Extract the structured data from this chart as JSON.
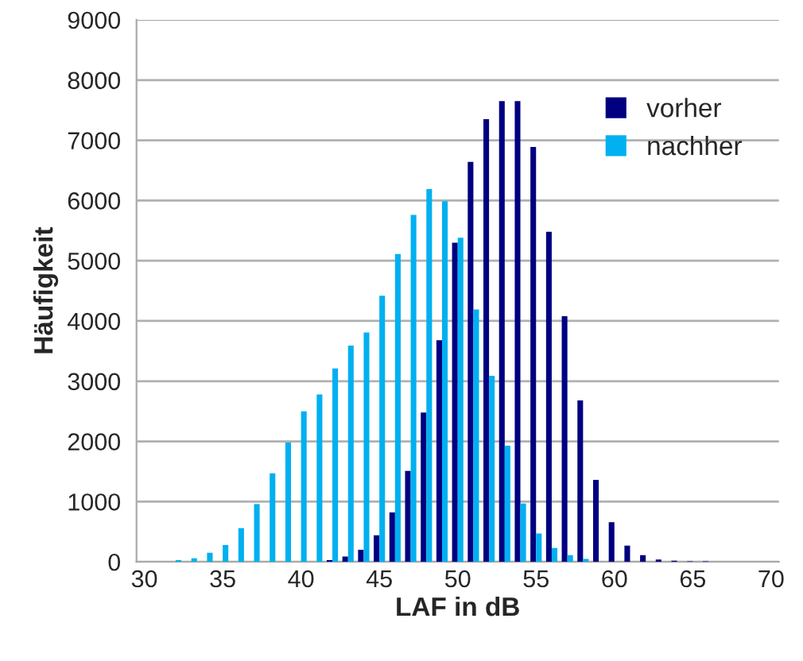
{
  "chart_data": {
    "type": "bar",
    "xlabel": "LAF in dB",
    "ylabel": "Häufigkeit",
    "categories": [
      "30",
      null,
      null,
      null,
      null,
      "35",
      null,
      null,
      null,
      null,
      "40",
      null,
      null,
      null,
      null,
      "45",
      null,
      null,
      null,
      null,
      "50",
      null,
      null,
      null,
      null,
      "55",
      null,
      null,
      null,
      null,
      "60",
      null,
      null,
      null,
      null,
      "65",
      null,
      null,
      null,
      null,
      "70"
    ],
    "series": [
      {
        "name": "vorher",
        "color": "#000080",
        "values": [
          0,
          0,
          0,
          0,
          0,
          0,
          0,
          0,
          0,
          0,
          0,
          0,
          30,
          90,
          200,
          440,
          820,
          1510,
          2480,
          3680,
          5300,
          6640,
          7350,
          7650,
          7650,
          6890,
          5480,
          4080,
          2680,
          1360,
          660,
          270,
          110,
          40,
          20,
          10,
          10,
          0,
          0,
          0,
          0
        ]
      },
      {
        "name": "nachher",
        "color": "#00b0f0",
        "values": [
          0,
          0,
          30,
          60,
          150,
          280,
          560,
          960,
          1470,
          1980,
          2500,
          2780,
          3210,
          3590,
          3810,
          4420,
          5110,
          5760,
          6190,
          5990,
          5380,
          4190,
          3090,
          1930,
          970,
          470,
          230,
          110,
          50,
          0,
          0,
          0,
          0,
          0,
          0,
          0,
          0,
          0,
          0,
          0,
          0
        ]
      }
    ],
    "ylim": [
      0,
      9000
    ],
    "yticks": [
      0,
      1000,
      2000,
      3000,
      4000,
      5000,
      6000,
      7000,
      8000,
      9000
    ],
    "grid": "y",
    "legend": "top right"
  }
}
